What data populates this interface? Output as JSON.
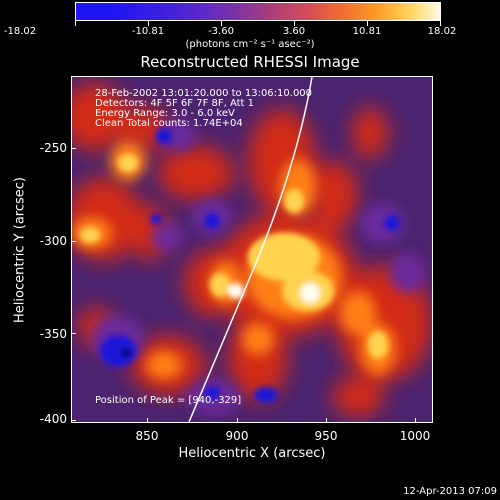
{
  "colorbar": {
    "tick_labels": [
      "-18.02",
      "-10.81",
      "-3.60",
      "3.60",
      "10.81",
      "18.02"
    ],
    "unit_label": "(photons cm⁻² s⁻¹ asec⁻²)",
    "colors": [
      "#1f15f5",
      "#1f15f5",
      "#3a1fe0",
      "#5d2ac6",
      "#8b3696",
      "#b64270",
      "#d64f55",
      "#ef6a33",
      "#fc9a25",
      "#ffd35c",
      "#fffde8"
    ]
  },
  "plot": {
    "title": "Reconstructed RHESSI Image",
    "info": {
      "date_range": "28-Feb-2002 13:01:20.000 to 13:06:10.000",
      "detectors": "Detectors: 4F 5F 6F 7F 8F, Att 1",
      "energy": "Energy Range: 3.0 - 6.0 keV",
      "method": "Clean      Total counts: 1.74E+04"
    },
    "peak": "Position of Peak = [940,-329]",
    "x_axis": {
      "label": "Heliocentric X (arcsec)",
      "ticks": [
        "850",
        "900",
        "950",
        "1000"
      ]
    },
    "y_axis": {
      "label": "Heliocentric Y (arcsec)",
      "ticks": [
        "-250",
        "-300",
        "-350",
        "-400"
      ]
    }
  },
  "timestamp": "12-Apr-2013 07:09",
  "palette": {
    "deep_blue": "#1f16d6",
    "violet": "#6b2b9c",
    "purple": "#4b236e",
    "red": "#d12a13",
    "orange": "#ff7f13",
    "yellow": "#ffd34f",
    "white": "#fffdf0",
    "black": "#000000"
  }
}
